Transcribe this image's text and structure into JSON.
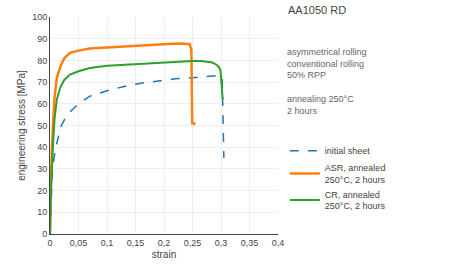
{
  "chart_data": {
    "type": "line",
    "title": "AA1050 RD",
    "xlabel": "strain",
    "ylabel": "engineering stress [MPa]",
    "xlim": [
      0,
      0.4
    ],
    "ylim": [
      0,
      100
    ],
    "xticks": [
      0,
      {
        "value": 0.05,
        "label": "0,05"
      },
      {
        "value": 0.1,
        "label": "0,1"
      },
      {
        "value": 0.15,
        "label": "0,15"
      },
      {
        "value": 0.2,
        "label": "0,2"
      },
      {
        "value": 0.25,
        "label": "0,25"
      },
      {
        "value": 0.3,
        "label": "0,3"
      },
      {
        "value": 0.35,
        "label": "0,35"
      },
      {
        "value": 0.4,
        "label": "0,4"
      }
    ],
    "yticks": [
      0,
      10,
      20,
      30,
      40,
      50,
      60,
      70,
      80,
      90,
      100
    ],
    "grid": true,
    "legend": "right",
    "annotations": [
      "asymmetrical rolling\nconventional rolling\n50% RPP\n\nannealing 250°C\n2 hours"
    ],
    "series": [
      {
        "name": "initial sheet",
        "line_style": "dashed",
        "x": [
          0,
          0.002,
          0.004,
          0.007,
          0.012,
          0.02,
          0.03,
          0.05,
          0.07,
          0.1,
          0.13,
          0.16,
          0.19,
          0.22,
          0.25,
          0.27,
          0.285,
          0.295,
          0.302,
          0.305
        ],
        "values": [
          0,
          20,
          28,
          35,
          42,
          50,
          55,
          60,
          63.5,
          66,
          68,
          69.5,
          70.5,
          71.5,
          72,
          72.5,
          72.8,
          73,
          72.5,
          35
        ]
      },
      {
        "name": "ASR, annealed\n250°C, 2 hours",
        "line_style": "solid",
        "x": [
          0,
          0.002,
          0.005,
          0.008,
          0.012,
          0.018,
          0.025,
          0.035,
          0.05,
          0.07,
          0.1,
          0.13,
          0.16,
          0.19,
          0.215,
          0.23,
          0.24,
          0.245,
          0.248,
          0.2495,
          0.252,
          0.255
        ],
        "values": [
          0,
          28,
          50,
          63,
          72,
          77,
          81,
          83.5,
          84.5,
          85.5,
          86,
          86.5,
          87,
          87.5,
          87.7,
          87.8,
          87.7,
          87.5,
          85,
          51,
          51,
          50.5
        ]
      },
      {
        "name": "CR, annealed\n250°C, 2 hours",
        "line_style": "solid",
        "x": [
          0,
          0.002,
          0.005,
          0.008,
          0.012,
          0.018,
          0.025,
          0.035,
          0.05,
          0.07,
          0.1,
          0.13,
          0.16,
          0.19,
          0.22,
          0.25,
          0.265,
          0.275,
          0.285,
          0.292,
          0.296,
          0.299,
          0.303
        ],
        "values": [
          0,
          22,
          40,
          53,
          62,
          67.5,
          71,
          73.5,
          75,
          76.5,
          77.5,
          78,
          78.5,
          79,
          79.5,
          79.7,
          79.7,
          79.5,
          79,
          78,
          77,
          75.5,
          62
        ]
      }
    ]
  }
}
